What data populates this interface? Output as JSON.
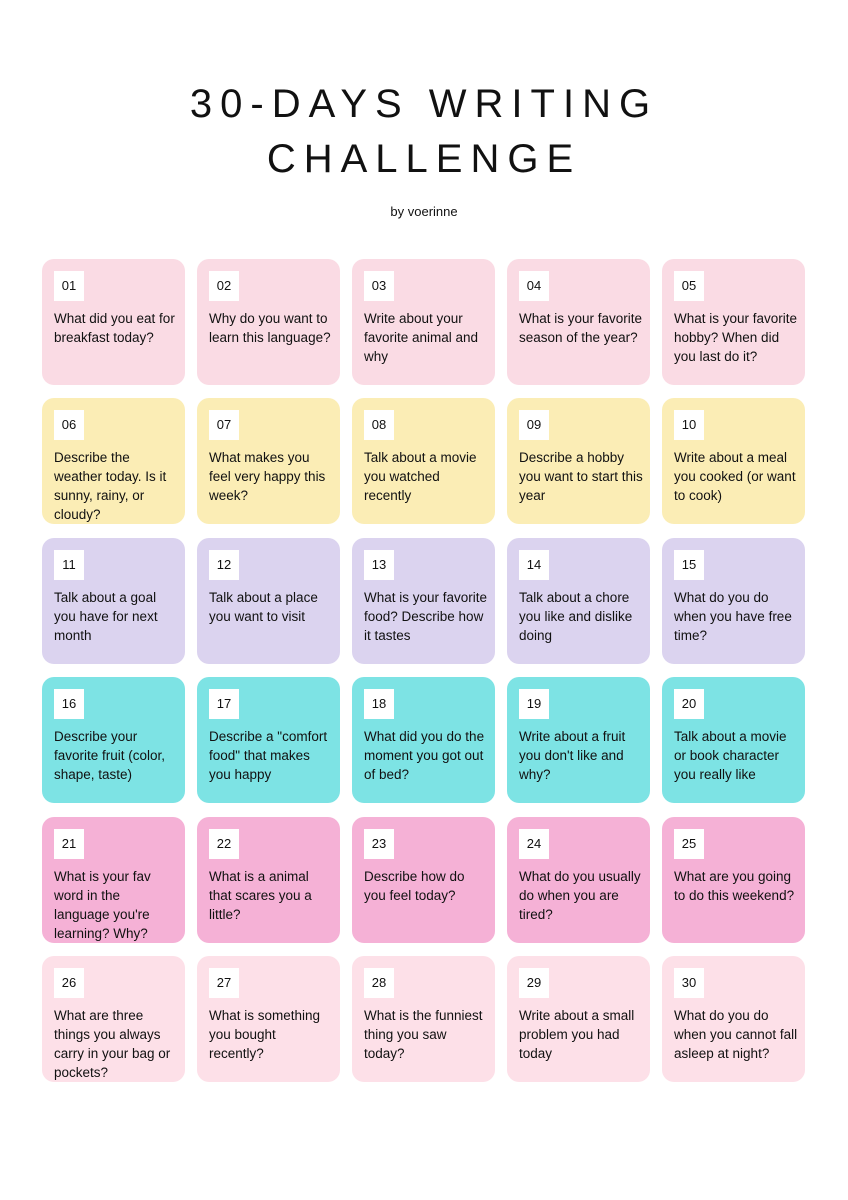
{
  "header": {
    "title_lines": [
      "30-DAYS WRITING",
      "CHALLENGE"
    ],
    "byline": "by voerinne"
  },
  "cards": [
    {
      "day": "01",
      "text": "What did you eat for breakfast today?"
    },
    {
      "day": "02",
      "text": "Why do you want to learn this language?"
    },
    {
      "day": "03",
      "text": "Write about your favorite animal and why"
    },
    {
      "day": "04",
      "text": "What is your favorite season of the year?"
    },
    {
      "day": "05",
      "text": "What is your favorite hobby? When did you last do it?"
    },
    {
      "day": "06",
      "text": "Describe the weather today. Is it sunny, rainy, or cloudy?"
    },
    {
      "day": "07",
      "text": "What makes you feel very happy this week?"
    },
    {
      "day": "08",
      "text": "Talk about a movie you watched recently"
    },
    {
      "day": "09",
      "text": "Describe a hobby you want to start this year"
    },
    {
      "day": "10",
      "text": "Write about a meal you cooked (or want to cook)"
    },
    {
      "day": "11",
      "text": "Talk about a goal you have for next month"
    },
    {
      "day": "12",
      "text": "Talk about a place you want to visit"
    },
    {
      "day": "13",
      "text": "What is your favorite food? Describe how it tastes"
    },
    {
      "day": "14",
      "text": "Talk about a chore you like and dislike doing"
    },
    {
      "day": "15",
      "text": "What do you do when you have free time?"
    },
    {
      "day": "16",
      "text": "Describe your favorite fruit (color, shape, taste)"
    },
    {
      "day": "17",
      "text": "Describe a \"comfort food\" that makes you happy"
    },
    {
      "day": "18",
      "text": "What did you do the moment you got out of bed?"
    },
    {
      "day": "19",
      "text": "Write about a fruit you don't like and why?"
    },
    {
      "day": "20",
      "text": "Talk about a movie or book character you really like"
    },
    {
      "day": "21",
      "text": "What is your fav word in the language you're learning? Why?"
    },
    {
      "day": "22",
      "text": "What is a animal that scares you a little?"
    },
    {
      "day": "23",
      "text": "Describe how do you feel today?"
    },
    {
      "day": "24",
      "text": "What do you usually do when you are tired?"
    },
    {
      "day": "25",
      "text": "What are you going to do this weekend?"
    },
    {
      "day": "26",
      "text": "What are three things you always carry in your bag or pockets?"
    },
    {
      "day": "27",
      "text": "What is something you bought recently?"
    },
    {
      "day": "28",
      "text": "What is the funniest thing you saw today?"
    },
    {
      "day": "29",
      "text": "Write about a small problem you had today"
    },
    {
      "day": "30",
      "text": "What do you do when you cannot fall asleep at night?"
    }
  ]
}
